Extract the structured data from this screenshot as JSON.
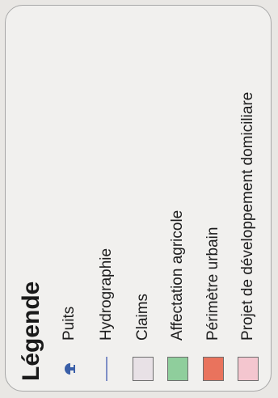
{
  "legend": {
    "title": "Légende",
    "items": [
      {
        "label": "Puits",
        "symbol": "well-icon",
        "color": "#3a5fa8"
      },
      {
        "label": "Hydrographie",
        "symbol": "line",
        "color": "#7f8fc6"
      },
      {
        "label": "Claims",
        "symbol": "fill",
        "color": "#e8e1e6"
      },
      {
        "label": "Affectation agricole",
        "symbol": "fill",
        "color": "#8fce9c"
      },
      {
        "label": "Périmètre urbain",
        "symbol": "fill",
        "color": "#e9735d"
      },
      {
        "label": "Projet de développement domiciliare",
        "symbol": "fill",
        "color": "#f4c6cf"
      }
    ]
  }
}
